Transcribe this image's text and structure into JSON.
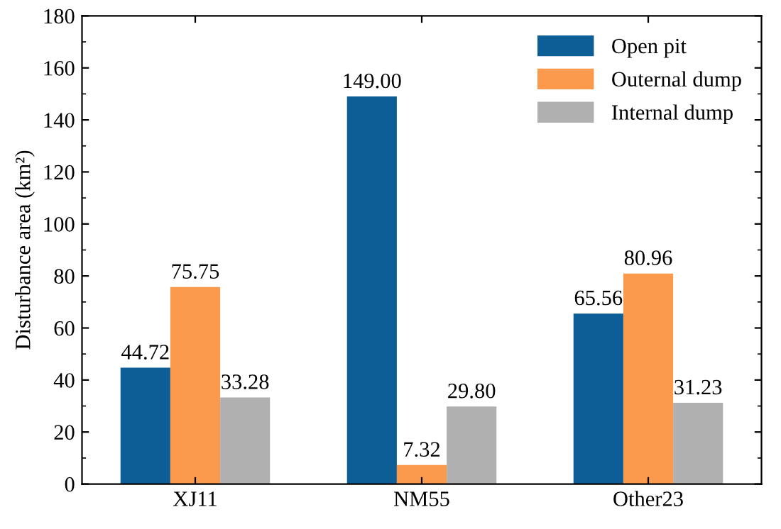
{
  "chart_data": {
    "type": "bar",
    "ylabel": "Disturbance area (km²)",
    "categories": [
      "XJ11",
      "NM55",
      "Other23"
    ],
    "series": [
      {
        "name": "Open pit",
        "color": "#0d5e96",
        "values": [
          44.72,
          149.0,
          65.56
        ],
        "value_labels": [
          "44.72",
          "149.00",
          "65.56"
        ]
      },
      {
        "name": "Outernal dump",
        "color": "#fb9a4c",
        "values": [
          75.75,
          7.32,
          80.96
        ],
        "value_labels": [
          "75.75",
          "7.32",
          "80.96"
        ]
      },
      {
        "name": "Internal dump",
        "color": "#b0b0b0",
        "values": [
          33.28,
          29.8,
          31.23
        ],
        "value_labels": [
          "33.28",
          "29.80",
          "31.23"
        ]
      }
    ],
    "ylim": [
      0,
      180
    ],
    "yticks": [
      0,
      20,
      40,
      60,
      80,
      100,
      120,
      140,
      160,
      180
    ],
    "legend": "top right"
  }
}
